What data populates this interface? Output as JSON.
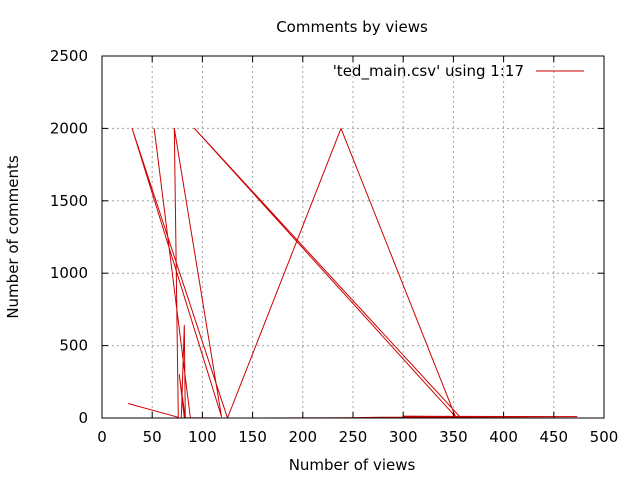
{
  "chart_data": {
    "type": "line",
    "title": "Comments by views",
    "xlabel": "Number of views",
    "ylabel": "Number of comments",
    "xlim": [
      0,
      500
    ],
    "ylim": [
      0,
      2500
    ],
    "x_ticks": [
      0,
      50,
      100,
      150,
      200,
      250,
      300,
      350,
      400,
      450,
      500
    ],
    "y_ticks": [
      0,
      500,
      1000,
      1500,
      2000,
      2500
    ],
    "grid": true,
    "legend_position": "top-right",
    "series": [
      {
        "name": "'ted_main.csv' using 1:17",
        "color": "#cc0000",
        "points": [
          [
            26,
            100
          ],
          [
            76,
            5
          ],
          [
            72,
            2000
          ],
          [
            119,
            10
          ],
          [
            30,
            2000
          ],
          [
            125,
            0
          ],
          [
            238,
            2000
          ],
          [
            352,
            10
          ],
          [
            92,
            2000
          ],
          [
            357,
            5
          ],
          [
            405,
            8
          ],
          [
            300,
            12
          ],
          [
            473,
            10
          ],
          [
            278,
            5
          ],
          [
            246,
            2
          ],
          [
            143,
            0
          ],
          [
            123,
            0
          ],
          [
            125,
            0
          ],
          [
            82,
            2
          ],
          [
            77,
            300
          ],
          [
            83,
            0
          ],
          [
            82,
            640
          ],
          [
            79,
            0
          ],
          [
            88,
            0
          ],
          [
            52,
            2000
          ]
        ]
      }
    ]
  }
}
